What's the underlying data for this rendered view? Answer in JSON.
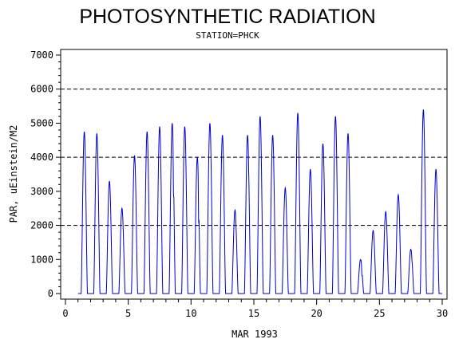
{
  "chart_data": {
    "type": "line",
    "title": "PHOTOSYNTHETIC RADIATION",
    "subtitle": "STATION=PHCK",
    "xlabel": "MAR 1993",
    "ylabel": "PAR, uEinstein/M2",
    "xlim": [
      0,
      30
    ],
    "ylim": [
      0,
      7000
    ],
    "x_ticks": [
      0,
      5,
      10,
      15,
      20,
      25,
      30
    ],
    "y_ticks": [
      0,
      1000,
      2000,
      3000,
      4000,
      5000,
      6000,
      7000
    ],
    "reference_lines_y": [
      2000,
      4000,
      6000
    ],
    "grid": false,
    "series": [
      {
        "color": "#0000cc",
        "daily_peaks": [
          {
            "day": 1,
            "peak": 4750,
            "shoulder": 4000
          },
          {
            "day": 2,
            "peak": 4700,
            "shoulder": 4500
          },
          {
            "day": 3,
            "peak": 3300,
            "shoulder": 2900
          },
          {
            "day": 4,
            "peak": 2500,
            "shoulder": 2200
          },
          {
            "day": 5,
            "peak": 4050,
            "shoulder": 3900
          },
          {
            "day": 6,
            "peak": 4750,
            "shoulder": 4600
          },
          {
            "day": 7,
            "peak": 4900,
            "shoulder": 4700
          },
          {
            "day": 8,
            "peak": 5000,
            "shoulder": 2800
          },
          {
            "day": 9,
            "peak": 4900,
            "shoulder": 4700
          },
          {
            "day": 10,
            "peak": 4000,
            "shoulder": 2000
          },
          {
            "day": 11,
            "peak": 5000,
            "shoulder": 4700
          },
          {
            "day": 12,
            "peak": 4650,
            "shoulder": 4400
          },
          {
            "day": 13,
            "peak": 2450,
            "shoulder": 1800
          },
          {
            "day": 14,
            "peak": 4650,
            "shoulder": 3400
          },
          {
            "day": 15,
            "peak": 5200,
            "shoulder": 4800
          },
          {
            "day": 16,
            "peak": 4650,
            "shoulder": 4300
          },
          {
            "day": 17,
            "peak": 3100,
            "shoulder": 2900
          },
          {
            "day": 18,
            "peak": 5300,
            "shoulder": 5000
          },
          {
            "day": 19,
            "peak": 3650,
            "shoulder": 3200
          },
          {
            "day": 20,
            "peak": 4400,
            "shoulder": 4100
          },
          {
            "day": 21,
            "peak": 5200,
            "shoulder": 4900
          },
          {
            "day": 22,
            "peak": 4700,
            "shoulder": 4300
          },
          {
            "day": 23,
            "peak": 1000,
            "shoulder": 500
          },
          {
            "day": 24,
            "peak": 1850,
            "shoulder": 1500
          },
          {
            "day": 25,
            "peak": 2400,
            "shoulder": 1900
          },
          {
            "day": 26,
            "peak": 2900,
            "shoulder": 2500
          },
          {
            "day": 27,
            "peak": 1300,
            "shoulder": 900
          },
          {
            "day": 28,
            "peak": 5400,
            "shoulder": 5100
          },
          {
            "day": 29,
            "peak": 3650,
            "shoulder": 2800
          }
        ]
      }
    ]
  }
}
